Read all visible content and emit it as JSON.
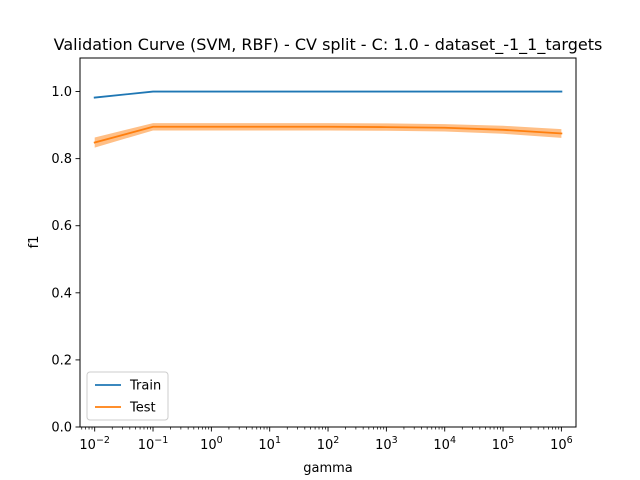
{
  "chart_data": {
    "type": "line",
    "title": "Validation Curve (SVM, RBF) - CV split - C: 1.0 - dataset_-1_1_targets",
    "xlabel": "gamma",
    "ylabel": "f1",
    "xscale": "log",
    "xlim": [
      0.0056,
      1780000
    ],
    "ylim": [
      0.0,
      1.1
    ],
    "x": [
      0.01,
      0.1,
      1,
      10,
      100,
      1000,
      10000,
      100000,
      1000000
    ],
    "x_ticks": [
      {
        "base": "10",
        "exp": "−2",
        "value": 0.01
      },
      {
        "base": "10",
        "exp": "−1",
        "value": 0.1
      },
      {
        "base": "10",
        "exp": "0",
        "value": 1
      },
      {
        "base": "10",
        "exp": "1",
        "value": 10
      },
      {
        "base": "10",
        "exp": "2",
        "value": 100
      },
      {
        "base": "10",
        "exp": "3",
        "value": 1000
      },
      {
        "base": "10",
        "exp": "4",
        "value": 10000
      },
      {
        "base": "10",
        "exp": "5",
        "value": 100000
      },
      {
        "base": "10",
        "exp": "6",
        "value": 1000000
      }
    ],
    "y_ticks": [
      "0.0",
      "0.2",
      "0.4",
      "0.6",
      "0.8",
      "1.0"
    ],
    "y_tick_values": [
      0.0,
      0.2,
      0.4,
      0.6,
      0.8,
      1.0
    ],
    "series": [
      {
        "name": "Train",
        "color": "#1f77b4",
        "values": [
          0.982,
          1.0,
          1.0,
          1.0,
          1.0,
          1.0,
          1.0,
          1.0,
          1.0
        ]
      },
      {
        "name": "Test",
        "color": "#ff7f0e",
        "values": [
          0.848,
          0.895,
          0.895,
          0.895,
          0.895,
          0.894,
          0.892,
          0.886,
          0.875
        ],
        "lower": [
          0.833,
          0.884,
          0.884,
          0.884,
          0.884,
          0.883,
          0.881,
          0.874,
          0.862
        ],
        "upper": [
          0.863,
          0.906,
          0.906,
          0.906,
          0.906,
          0.905,
          0.903,
          0.898,
          0.888
        ]
      }
    ],
    "grid": false,
    "legend_position": "lower-left"
  }
}
